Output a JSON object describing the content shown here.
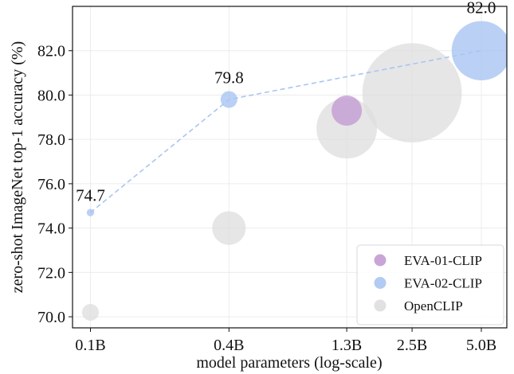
{
  "chart_data": {
    "type": "scatter",
    "xlabel": "model parameters (log-scale)",
    "ylabel": "zero-shot ImageNet top-1 accuracy (%)",
    "x_scale": "log",
    "x_ticks": [
      {
        "value": 0.1,
        "label": "0.1B"
      },
      {
        "value": 0.4,
        "label": "0.4B"
      },
      {
        "value": 1.3,
        "label": "1.3B"
      },
      {
        "value": 2.5,
        "label": "2.5B"
      },
      {
        "value": 5.0,
        "label": "5.0B"
      }
    ],
    "y_ticks": [
      "70.0",
      "72.0",
      "74.0",
      "76.0",
      "78.0",
      "80.0",
      "82.0"
    ],
    "ylim": [
      69.5,
      84.0
    ],
    "grid": true,
    "legend_position": "bottom-right",
    "series": [
      {
        "name": "EVA-01-CLIP",
        "color": "#c39bd3",
        "connected": false,
        "points": [
          {
            "x": 1.3,
            "y": 79.3,
            "size": 1.3
          }
        ]
      },
      {
        "name": "EVA-02-CLIP",
        "color": "#a9c5f2",
        "connected": true,
        "points": [
          {
            "x": 0.1,
            "y": 74.7,
            "size": 0.1,
            "label": "74.7"
          },
          {
            "x": 0.4,
            "y": 79.8,
            "size": 0.4,
            "label": "79.8"
          },
          {
            "x": 5.0,
            "y": 82.0,
            "size": 5.0,
            "label": "82.0"
          }
        ]
      },
      {
        "name": "OpenCLIP",
        "color": "#dedede",
        "connected": false,
        "points": [
          {
            "x": 0.1,
            "y": 70.2,
            "size": 0.4
          },
          {
            "x": 0.4,
            "y": 74.0,
            "size": 1.6
          },
          {
            "x": 1.3,
            "y": 78.5,
            "size": 5.2
          },
          {
            "x": 2.5,
            "y": 80.1,
            "size": 14.0
          }
        ]
      }
    ]
  }
}
